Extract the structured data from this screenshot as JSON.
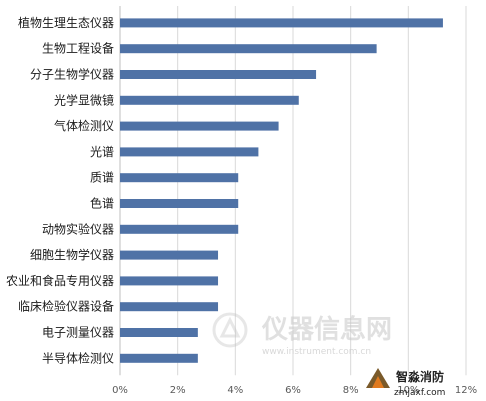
{
  "chart_data": {
    "type": "bar",
    "orientation": "horizontal",
    "categories": [
      "植物生理生态仪器",
      "生物工程设备",
      "分子生物学仪器",
      "光学显微镜",
      "气体检测仪",
      "光谱",
      "质谱",
      "色谱",
      "动物实验仪器",
      "细胞生物学仪器",
      "农业和食品专用仪器",
      "临床检验仪器设备",
      "电子测量仪器",
      "半导体检测仪"
    ],
    "values": [
      11.2,
      8.9,
      6.8,
      6.2,
      5.5,
      4.8,
      4.1,
      4.1,
      4.1,
      3.4,
      3.4,
      3.4,
      2.7,
      2.7
    ],
    "xlim": [
      0,
      12
    ],
    "xticks": [
      "0%",
      "2%",
      "4%",
      "6%",
      "8%",
      "10%",
      "12%"
    ],
    "grid": true,
    "bar_color": "#4f72a6"
  },
  "watermark": {
    "text": "仪器信息网",
    "url": "www.instrument.com.cn"
  },
  "logo": {
    "name": "智淼消防",
    "url": "zmjaxf.com"
  }
}
